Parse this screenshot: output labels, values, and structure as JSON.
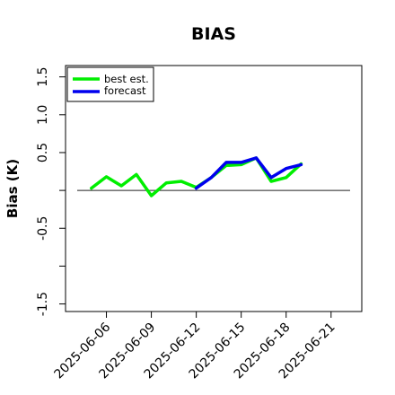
{
  "chart_data": {
    "type": "line",
    "title": "BIAS",
    "xlabel": "",
    "ylabel": "Bias (K)",
    "x_ticks": [
      "2025-06-06",
      "2025-06-09",
      "2025-06-12",
      "2025-06-15",
      "2025-06-18",
      "2025-06-21"
    ],
    "highlighted_tick": "2025-06-12",
    "highlight_color": "#228b22",
    "y_ticks": [
      "-1.5",
      "-0.5",
      "0.5",
      "1.0",
      "1.5"
    ],
    "ylim": [
      -1.6,
      1.65
    ],
    "zero_line": true,
    "grid": false,
    "legend_position": "top-left",
    "series": [
      {
        "name": "best est.",
        "color": "#00ee00",
        "x": [
          "2025-06-05",
          "2025-06-06",
          "2025-06-07",
          "2025-06-08",
          "2025-06-09",
          "2025-06-10",
          "2025-06-11",
          "2025-06-12",
          "2025-06-13",
          "2025-06-14",
          "2025-06-15",
          "2025-06-16",
          "2025-06-17",
          "2025-06-18",
          "2025-06-19"
        ],
        "values": [
          0.03,
          0.18,
          0.06,
          0.21,
          -0.07,
          0.1,
          0.12,
          0.04,
          0.17,
          0.33,
          0.34,
          0.43,
          0.12,
          0.17,
          0.35
        ]
      },
      {
        "name": "forecast",
        "color": "#0000ee",
        "x": [
          "2025-06-12",
          "2025-06-13",
          "2025-06-14",
          "2025-06-15",
          "2025-06-16",
          "2025-06-17",
          "2025-06-18",
          "2025-06-19"
        ],
        "values": [
          0.03,
          0.17,
          0.37,
          0.37,
          0.43,
          0.17,
          0.29,
          0.34
        ]
      }
    ]
  }
}
